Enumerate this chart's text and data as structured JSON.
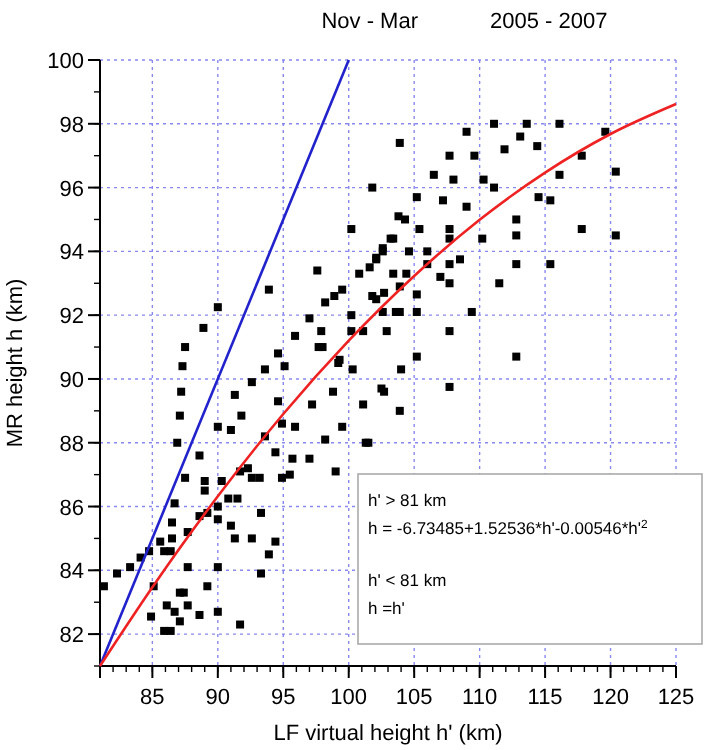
{
  "chart_data": {
    "type": "scatter",
    "title": "Nov - Mar",
    "subtitle": "2005 - 2007",
    "xlabel": "LF virtual height h' (km)",
    "ylabel": "MR height h (km)",
    "xlim": [
      81,
      125
    ],
    "ylim": [
      81,
      100
    ],
    "xticks": [
      {
        "value": 81,
        "label": null
      },
      85,
      90,
      95,
      100,
      105,
      110,
      115,
      120,
      125
    ],
    "yticks": [
      82,
      84,
      86,
      88,
      90,
      92,
      94,
      96,
      98,
      100
    ],
    "grid": true,
    "annotations": [
      "h' > 81 km",
      "h = -6.73485+1.52536*h'-0.00546*h'$^{2}$",
      "h' < 81 km",
      "h =h'"
    ],
    "series": [
      {
        "color": "#000000",
        "marker": "square",
        "x": [
          103.9,
          101.8,
          100.2,
          103.8,
          97.6,
          93.9,
          90.0,
          88.9,
          87.5,
          87.3,
          98.2,
          98.9,
          99.5,
          100.8,
          101.6,
          102.1,
          102.6,
          103.2,
          102.1,
          100.2,
          97.0,
          97.9,
          95.9,
          94.6,
          98.0,
          100.2,
          101.1,
          95.1,
          93.6,
          99.2,
          102.6,
          103.6,
          109.0,
          111.1,
          113.6,
          116.1,
          119.6,
          107.7,
          109.6,
          111.9,
          113.1,
          114.4,
          117.8,
          120.4,
          106.5,
          108.0,
          110.3,
          111.1,
          105.2,
          107.2,
          109.0,
          114.5,
          115.4,
          116.1,
          104.3,
          105.4,
          107.7,
          112.8,
          112.8,
          117.8,
          120.4,
          107.7,
          110.2,
          103.4,
          102.6,
          104.6,
          106.0,
          107.7,
          108.5,
          112.8,
          115.4,
          102.1,
          103.4,
          104.4,
          106.0,
          107.0,
          107.7,
          103.9,
          102.7,
          101.8,
          105.2,
          111.5,
          105.2,
          103.9,
          109.4,
          102.9,
          107.7,
          105.2,
          104.0,
          112.8,
          102.7,
          107.7,
          103.9,
          101.3,
          101.1,
          87.2,
          87.1,
          86.9,
          87.5,
          86.7,
          86.5,
          86.5,
          85.6,
          84.75,
          84.1,
          83.3,
          82.3,
          81.3,
          85.9,
          86.4,
          87.7,
          88.6,
          89.2,
          90.0,
          90.0,
          90.0,
          87.7,
          87.1,
          87.4,
          85.1,
          84.9,
          86.1,
          86.7,
          85.9,
          86.4,
          87.1,
          87.7,
          88.6,
          89.2,
          90.0,
          91.7,
          93.3,
          93.9,
          94.4,
          93.3,
          92.6,
          91.3,
          91.0,
          90.8,
          89.0,
          89.0,
          90.3,
          91.7,
          91.5,
          92.6,
          93.2,
          94.9,
          95.5,
          97.0,
          95.7,
          94.4,
          92.3,
          93.6,
          94.9,
          95.9,
          94.6,
          92.6,
          91.3,
          91.8,
          90.0,
          88.6,
          91.0,
          97.2,
          98.8,
          98.2,
          99.5,
          99.0,
          101.5,
          102.5,
          100.3,
          99.3,
          97.7
        ],
        "values": [
          97.4,
          96.0,
          94.7,
          95.1,
          93.4,
          92.8,
          92.25,
          91.6,
          91.0,
          90.4,
          92.4,
          92.6,
          92.8,
          93.3,
          93.5,
          93.75,
          94.0,
          94.4,
          92.5,
          92.0,
          91.9,
          91.5,
          91.35,
          90.8,
          91.0,
          91.5,
          91.5,
          90.4,
          90.3,
          90.5,
          92.1,
          92.1,
          97.75,
          98.0,
          98.0,
          98.0,
          97.75,
          97.0,
          97.0,
          97.2,
          97.6,
          97.3,
          97.0,
          96.5,
          96.4,
          96.25,
          96.25,
          96.0,
          95.7,
          95.6,
          95.4,
          95.7,
          95.6,
          96.4,
          95.0,
          94.7,
          94.7,
          95.0,
          94.5,
          94.7,
          94.5,
          94.4,
          94.4,
          94.4,
          94.1,
          94.0,
          94.0,
          93.6,
          93.75,
          93.6,
          93.6,
          93.8,
          93.3,
          93.3,
          93.6,
          93.2,
          93.0,
          92.9,
          92.7,
          92.6,
          92.65,
          93.0,
          92.1,
          92.1,
          92.1,
          91.5,
          91.5,
          90.7,
          90.3,
          90.7,
          89.6,
          89.75,
          89.0,
          88.0,
          89.2,
          89.6,
          88.85,
          88.0,
          86.9,
          86.1,
          85.5,
          85.0,
          84.9,
          84.6,
          84.4,
          84.1,
          83.9,
          83.5,
          84.6,
          84.6,
          85.2,
          85.7,
          85.8,
          86.0,
          85.6,
          84.1,
          84.1,
          83.3,
          83.3,
          83.5,
          82.55,
          82.9,
          82.7,
          82.1,
          82.1,
          82.4,
          82.9,
          82.6,
          83.5,
          82.7,
          82.3,
          83.9,
          84.5,
          84.9,
          85.8,
          85.0,
          85.0,
          85.4,
          86.25,
          86.8,
          86.5,
          86.8,
          87.1,
          86.25,
          86.9,
          86.9,
          86.9,
          87.0,
          87.5,
          87.5,
          87.7,
          87.2,
          88.2,
          88.6,
          88.5,
          89.3,
          89.9,
          89.5,
          88.85,
          88.5,
          87.6,
          88.4,
          89.2,
          89.6,
          88.1,
          88.5,
          87.1,
          88.0,
          89.7,
          90.3,
          90.6,
          91.0
        ]
      },
      {
        "type": "line",
        "color": "#2222cc",
        "marker": "none",
        "line_style": "solid",
        "x": [
          81,
          100
        ],
        "values": [
          81,
          100
        ]
      },
      {
        "type": "line",
        "color": "#ee2222",
        "marker": "none",
        "line_style": "solid",
        "x": [
          81,
          85,
          90,
          95,
          100,
          105,
          110,
          115,
          120,
          125
        ],
        "values": [
          81.0,
          83.47,
          86.32,
          88.9,
          91.2,
          93.23,
          94.99,
          96.47,
          97.68,
          98.62
        ]
      }
    ]
  }
}
